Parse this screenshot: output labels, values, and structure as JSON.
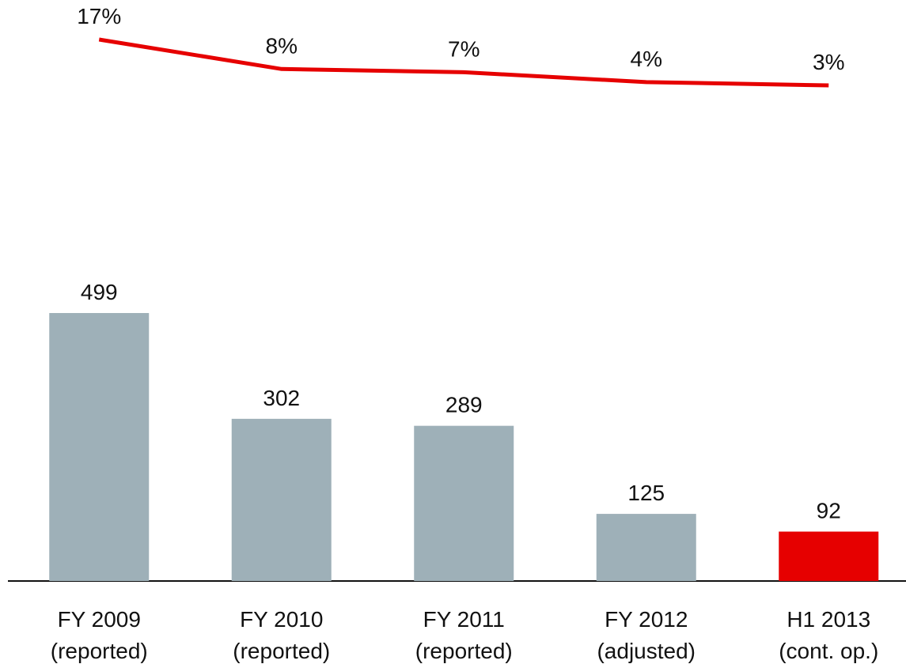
{
  "chart_data": {
    "type": "bar",
    "categories": [
      [
        "FY 2009",
        "(reported)"
      ],
      [
        "FY 2010",
        "(reported)"
      ],
      [
        "FY 2011",
        "(reported)"
      ],
      [
        "FY 2012",
        "(adjusted)"
      ],
      [
        "H1 2013",
        "(cont. op.)"
      ]
    ],
    "series": [
      {
        "type": "bar",
        "colors": [
          "#9eb0b8",
          "#9eb0b8",
          "#9eb0b8",
          "#9eb0b8",
          "#e60000"
        ],
        "values": [
          499,
          302,
          289,
          125,
          92
        ]
      },
      {
        "type": "line",
        "color": "#e60000",
        "values": [
          17,
          8,
          7,
          4,
          3
        ],
        "value_labels": [
          "17%",
          "8%",
          "7%",
          "4%",
          "3%"
        ]
      }
    ]
  }
}
